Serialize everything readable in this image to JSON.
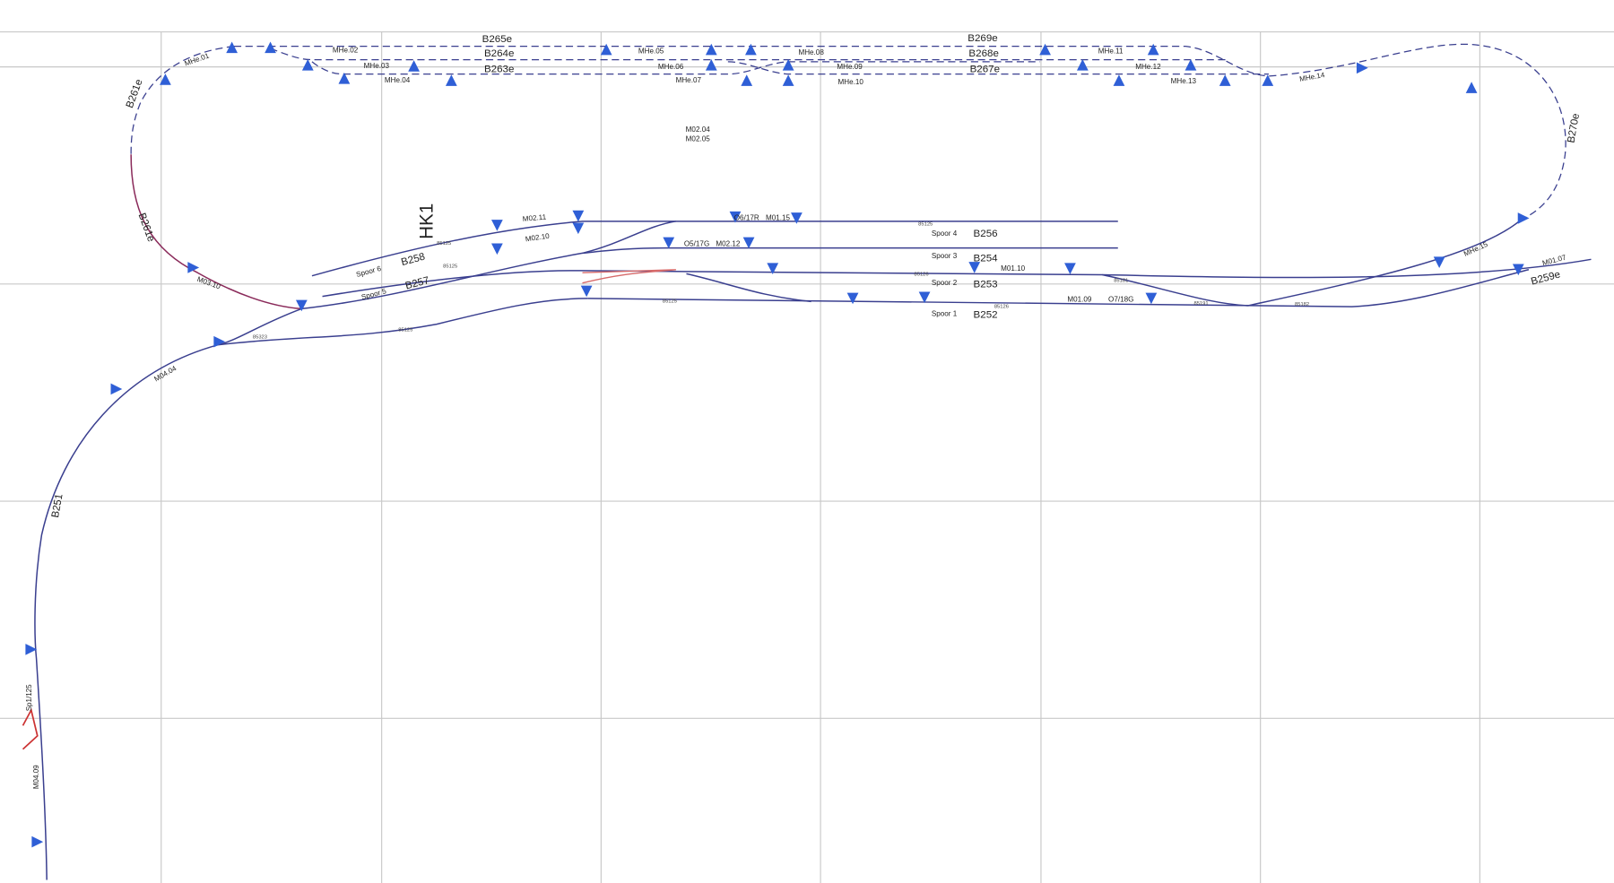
{
  "labels": {
    "tracks": [
      "B265e",
      "B264e",
      "B263e",
      "B269e",
      "B268e",
      "B267e",
      "B261e",
      "B261e",
      "B270e",
      "B256",
      "B254",
      "B253",
      "B252",
      "B258",
      "B257",
      "B251",
      "B259e",
      "HK1"
    ],
    "signals": [
      "MHe.01",
      "MHe.02",
      "MHe.03",
      "MHe.04",
      "MHe.05",
      "MHe.06",
      "MHe.07",
      "MHe.08",
      "MHe.09",
      "MHe.10",
      "MHe.11",
      "MHe.12",
      "MHe.13",
      "MHe.14",
      "MHe.15",
      "M02.04",
      "M02.05",
      "M02.11",
      "M02.10",
      "M02.12",
      "M01.15",
      "M01.10",
      "M01.09",
      "M01.07",
      "M03.10",
      "M04.04",
      "M04.09",
      "O6/17R",
      "O5/17G",
      "O7/18G",
      "Sp1/125"
    ],
    "spoor": [
      "Spoor 1",
      "Spoor 2",
      "Spoor 3",
      "Spoor 4",
      "Spoor 5",
      "Spoor 6"
    ],
    "misc": [
      "85125",
      "85125",
      "85125",
      "85125",
      "85125",
      "85181",
      "85191",
      "85182",
      "85323",
      "85126",
      "85126"
    ]
  }
}
